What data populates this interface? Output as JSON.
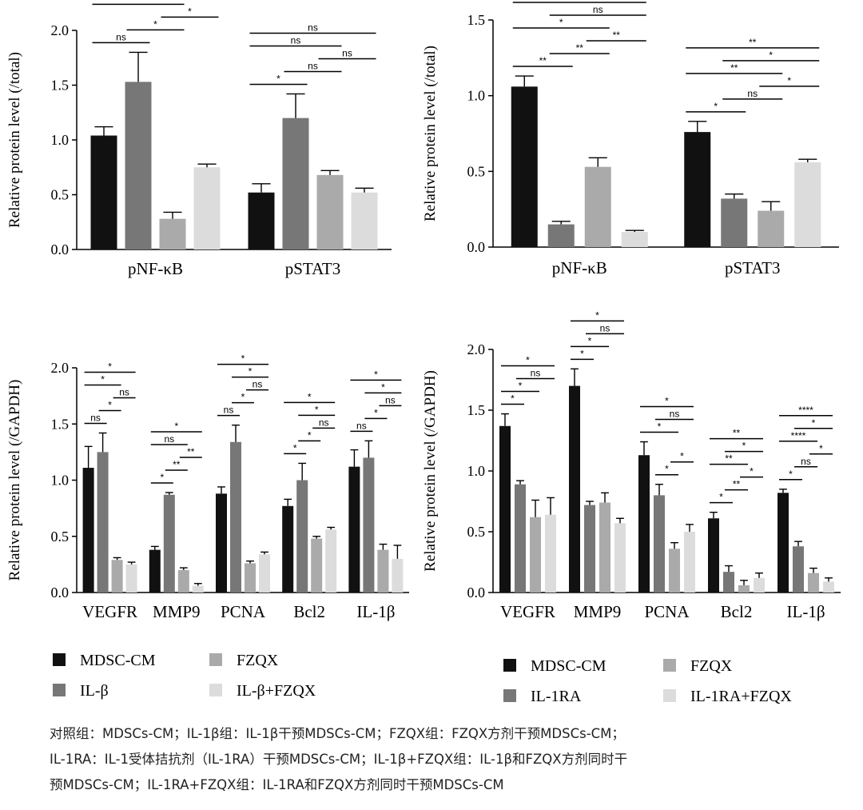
{
  "colors": [
    "#111111",
    "#777777",
    "#aaaaaa",
    "#dcdcdc"
  ],
  "legends": [
    {
      "items": [
        "MDSC-CM",
        "IL-β",
        "FZQX",
        "IL-β+FZQX"
      ]
    },
    {
      "items": [
        "MDSC-CM",
        "IL-1RA",
        "FZQX",
        "IL-1RA+FZQX"
      ]
    }
  ],
  "caption": {
    "lines": [
      "对照组：MDSCs-CM；IL-1β组：IL-1β干预MDSCs-CM；FZQX组：FZQX方剂干预MDSCs-CM；",
      "IL-1RA：IL-1受体拮抗剂（IL-1RA）干预MDSCs-CM；IL-1β+FZQX组：IL-1β和FZQX方剂同时干",
      "预MDSCs-CM；IL-1RA+FZQX组：IL-1RA和FZQX方剂同时干预MDSCs-CM"
    ]
  },
  "chart_data": [
    {
      "type": "bar",
      "ylabel": "Relative protein level (/total)",
      "ylim": [
        0,
        2.0
      ],
      "yticks": [
        "0.0",
        "0.5",
        "1.0",
        "1.5",
        "2.0"
      ],
      "categories": [
        "pNF-κB",
        "pSTAT3"
      ],
      "series": [
        {
          "name": "MDSC-CM",
          "values": [
            1.04,
            0.52
          ],
          "errors": [
            0.08,
            0.08
          ]
        },
        {
          "name": "IL-β",
          "values": [
            1.53,
            1.2
          ],
          "errors": [
            0.27,
            0.22
          ]
        },
        {
          "name": "FZQX",
          "values": [
            0.28,
            0.68
          ],
          "errors": [
            0.06,
            0.04
          ]
        },
        {
          "name": "IL-β+FZQX",
          "values": [
            0.75,
            0.52
          ],
          "errors": [
            0.03,
            0.04
          ]
        }
      ],
      "significance": [
        {
          "category": 0,
          "from": 0,
          "to": 2,
          "label": "***"
        },
        {
          "category": 0,
          "from": 0,
          "to": 1,
          "label": "ns"
        },
        {
          "category": 0,
          "from": 1,
          "to": 2,
          "label": "*"
        },
        {
          "category": 0,
          "from": 1,
          "to": 3,
          "label": "ns"
        },
        {
          "category": 0,
          "from": 2,
          "to": 3,
          "label": "*"
        },
        {
          "category": 1,
          "from": 0,
          "to": 3,
          "label": "ns"
        },
        {
          "category": 1,
          "from": 0,
          "to": 2,
          "label": "ns"
        },
        {
          "category": 1,
          "from": 0,
          "to": 1,
          "label": "*"
        },
        {
          "category": 1,
          "from": 1,
          "to": 2,
          "label": "ns"
        },
        {
          "category": 1,
          "from": 2,
          "to": 3,
          "label": "ns"
        }
      ]
    },
    {
      "type": "bar",
      "ylabel": "Relative protein level (/total)",
      "ylim": [
        0,
        1.5
      ],
      "yticks": [
        "0.0",
        "0.5",
        "1.0",
        "1.5"
      ],
      "categories": [
        "pNF-κB",
        "pSTAT3"
      ],
      "series": [
        {
          "name": "MDSC-CM",
          "values": [
            1.06,
            0.76
          ],
          "errors": [
            0.07,
            0.07
          ]
        },
        {
          "name": "IL-1RA",
          "values": [
            0.15,
            0.32
          ],
          "errors": [
            0.02,
            0.03
          ]
        },
        {
          "name": "FZQX",
          "values": [
            0.53,
            0.24
          ],
          "errors": [
            0.06,
            0.06
          ]
        },
        {
          "name": "IL-1RA+FZQX",
          "values": [
            0.1,
            0.56
          ],
          "errors": [
            0.01,
            0.02
          ]
        }
      ],
      "significance": [
        {
          "category": 0,
          "from": 0,
          "to": 3,
          "label": "**"
        },
        {
          "category": 0,
          "from": 0,
          "to": 2,
          "label": "*"
        },
        {
          "category": 0,
          "from": 0,
          "to": 1,
          "label": "**"
        },
        {
          "category": 0,
          "from": 1,
          "to": 3,
          "label": "ns"
        },
        {
          "category": 0,
          "from": 1,
          "to": 2,
          "label": "**"
        },
        {
          "category": 0,
          "from": 2,
          "to": 3,
          "label": "**"
        },
        {
          "category": 1,
          "from": 0,
          "to": 3,
          "label": "**"
        },
        {
          "category": 1,
          "from": 0,
          "to": 2,
          "label": "**"
        },
        {
          "category": 1,
          "from": 0,
          "to": 1,
          "label": "*"
        },
        {
          "category": 1,
          "from": 1,
          "to": 3,
          "label": "*"
        },
        {
          "category": 1,
          "from": 1,
          "to": 2,
          "label": "ns"
        },
        {
          "category": 1,
          "from": 2,
          "to": 3,
          "label": "*"
        }
      ]
    },
    {
      "type": "bar",
      "ylabel": "Relative protein level (/GAPDH)",
      "ylim": [
        0,
        2.0
      ],
      "yticks": [
        "0.0",
        "0.5",
        "1.0",
        "1.5",
        "2.0"
      ],
      "categories": [
        "VEGFR",
        "MMP9",
        "PCNA",
        "Bcl2",
        "IL-1β"
      ],
      "series": [
        {
          "name": "MDSC-CM",
          "values": [
            1.11,
            0.38,
            0.88,
            0.77,
            1.12
          ],
          "errors": [
            0.19,
            0.03,
            0.06,
            0.06,
            0.15
          ]
        },
        {
          "name": "IL-β",
          "values": [
            1.25,
            0.87,
            1.34,
            1.0,
            1.2
          ],
          "errors": [
            0.17,
            0.02,
            0.15,
            0.15,
            0.15
          ]
        },
        {
          "name": "FZQX",
          "values": [
            0.29,
            0.2,
            0.26,
            0.48,
            0.38
          ],
          "errors": [
            0.02,
            0.02,
            0.02,
            0.02,
            0.05
          ]
        },
        {
          "name": "IL-β+FZQX",
          "values": [
            0.25,
            0.06,
            0.34,
            0.56,
            0.3
          ],
          "errors": [
            0.02,
            0.02,
            0.02,
            0.02,
            0.12
          ]
        }
      ],
      "significance": [
        {
          "category": 0,
          "from": 0,
          "to": 3,
          "label": "*"
        },
        {
          "category": 0,
          "from": 0,
          "to": 2,
          "label": "*"
        },
        {
          "category": 0,
          "from": 0,
          "to": 1,
          "label": "ns"
        },
        {
          "category": 0,
          "from": 1,
          "to": 2,
          "label": "*"
        },
        {
          "category": 0,
          "from": 2,
          "to": 3,
          "label": "ns"
        },
        {
          "category": 1,
          "from": 0,
          "to": 3,
          "label": "*"
        },
        {
          "category": 1,
          "from": 0,
          "to": 2,
          "label": "ns"
        },
        {
          "category": 1,
          "from": 0,
          "to": 1,
          "label": "*"
        },
        {
          "category": 1,
          "from": 1,
          "to": 2,
          "label": "**"
        },
        {
          "category": 1,
          "from": 2,
          "to": 3,
          "label": "**"
        },
        {
          "category": 2,
          "from": 0,
          "to": 3,
          "label": "*"
        },
        {
          "category": 2,
          "from": 1,
          "to": 3,
          "label": "*"
        },
        {
          "category": 2,
          "from": 0,
          "to": 1,
          "label": "ns"
        },
        {
          "category": 2,
          "from": 1,
          "to": 2,
          "label": "*"
        },
        {
          "category": 2,
          "from": 2,
          "to": 3,
          "label": "ns"
        },
        {
          "category": 3,
          "from": 0,
          "to": 3,
          "label": "*"
        },
        {
          "category": 3,
          "from": 1,
          "to": 3,
          "label": "*"
        },
        {
          "category": 3,
          "from": 0,
          "to": 1,
          "label": "*"
        },
        {
          "category": 3,
          "from": 1,
          "to": 2,
          "label": "*"
        },
        {
          "category": 3,
          "from": 2,
          "to": 3,
          "label": "ns"
        },
        {
          "category": 4,
          "from": 0,
          "to": 3,
          "label": "*"
        },
        {
          "category": 4,
          "from": 1,
          "to": 3,
          "label": "*"
        },
        {
          "category": 4,
          "from": 0,
          "to": 1,
          "label": "ns"
        },
        {
          "category": 4,
          "from": 1,
          "to": 2,
          "label": "*"
        },
        {
          "category": 4,
          "from": 2,
          "to": 3,
          "label": "ns"
        }
      ]
    },
    {
      "type": "bar",
      "ylabel": "Relative protein level (/GAPDH)",
      "ylim": [
        0,
        2.0
      ],
      "yticks": [
        "0.0",
        "0.5",
        "1.0",
        "1.5",
        "2.0"
      ],
      "categories": [
        "VEGFR",
        "MMP9",
        "PCNA",
        "Bcl2",
        "IL-1β"
      ],
      "series": [
        {
          "name": "MDSC-CM",
          "values": [
            1.37,
            1.7,
            1.13,
            0.61,
            0.82
          ],
          "errors": [
            0.1,
            0.14,
            0.11,
            0.05,
            0.03
          ]
        },
        {
          "name": "IL-1RA",
          "values": [
            0.89,
            0.72,
            0.8,
            0.17,
            0.38
          ],
          "errors": [
            0.03,
            0.03,
            0.09,
            0.05,
            0.04
          ]
        },
        {
          "name": "FZQX",
          "values": [
            0.62,
            0.74,
            0.36,
            0.06,
            0.16
          ],
          "errors": [
            0.14,
            0.08,
            0.05,
            0.04,
            0.04
          ]
        },
        {
          "name": "IL-1RA+FZQX",
          "values": [
            0.64,
            0.57,
            0.5,
            0.12,
            0.09
          ],
          "errors": [
            0.14,
            0.04,
            0.06,
            0.04,
            0.03
          ]
        }
      ],
      "significance": [
        {
          "category": 0,
          "from": 0,
          "to": 3,
          "label": "*"
        },
        {
          "category": 0,
          "from": 0,
          "to": 2,
          "label": "*"
        },
        {
          "category": 0,
          "from": 0,
          "to": 1,
          "label": "*"
        },
        {
          "category": 0,
          "from": 1,
          "to": 3,
          "label": "ns"
        },
        {
          "category": 1,
          "from": 0,
          "to": 3,
          "label": "*"
        },
        {
          "category": 1,
          "from": 0,
          "to": 2,
          "label": "*"
        },
        {
          "category": 1,
          "from": 0,
          "to": 1,
          "label": "*"
        },
        {
          "category": 1,
          "from": 1,
          "to": 3,
          "label": "ns"
        },
        {
          "category": 2,
          "from": 0,
          "to": 3,
          "label": "*"
        },
        {
          "category": 2,
          "from": 0,
          "to": 2,
          "label": "*"
        },
        {
          "category": 2,
          "from": 1,
          "to": 3,
          "label": "ns"
        },
        {
          "category": 2,
          "from": 1,
          "to": 2,
          "label": "*"
        },
        {
          "category": 2,
          "from": 2,
          "to": 3,
          "label": "*"
        },
        {
          "category": 3,
          "from": 0,
          "to": 3,
          "label": "**"
        },
        {
          "category": 3,
          "from": 0,
          "to": 2,
          "label": "**"
        },
        {
          "category": 3,
          "from": 0,
          "to": 1,
          "label": "*"
        },
        {
          "category": 3,
          "from": 1,
          "to": 3,
          "label": "*"
        },
        {
          "category": 3,
          "from": 1,
          "to": 2,
          "label": "**"
        },
        {
          "category": 3,
          "from": 2,
          "to": 3,
          "label": "*"
        },
        {
          "category": 4,
          "from": 0,
          "to": 3,
          "label": "****"
        },
        {
          "category": 4,
          "from": 0,
          "to": 2,
          "label": "****"
        },
        {
          "category": 4,
          "from": 0,
          "to": 1,
          "label": "*"
        },
        {
          "category": 4,
          "from": 1,
          "to": 3,
          "label": "*"
        },
        {
          "category": 4,
          "from": 1,
          "to": 2,
          "label": "ns"
        },
        {
          "category": 4,
          "from": 2,
          "to": 3,
          "label": "*"
        }
      ]
    }
  ]
}
